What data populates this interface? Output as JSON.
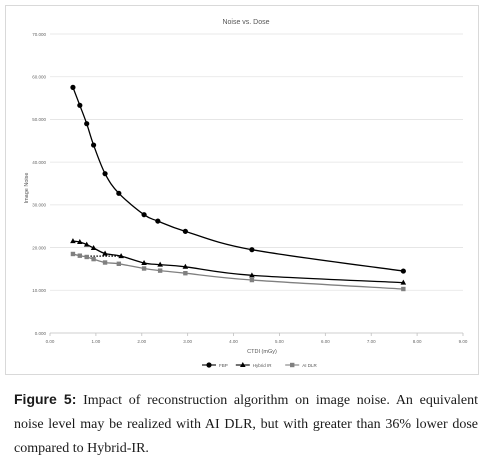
{
  "chart_data": {
    "type": "line",
    "title": "Noise vs. Dose",
    "xlabel": "CTDI (mGy)",
    "ylabel": "Image Noise",
    "xlim": [
      0,
      9
    ],
    "ylim": [
      0,
      70
    ],
    "x_ticks": [
      0,
      1,
      2,
      3,
      4,
      5,
      6,
      7,
      8,
      9
    ],
    "x_tick_labels": [
      "0.00",
      "1.00",
      "2.00",
      "3.00",
      "4.00",
      "5.00",
      "6.00",
      "7.00",
      "8.00",
      "9.00"
    ],
    "y_ticks": [
      0,
      10,
      20,
      30,
      40,
      50,
      60,
      70
    ],
    "y_tick_labels": [
      "0.000",
      "10.000",
      "20.000",
      "30.000",
      "40.000",
      "50.000",
      "60.000",
      "70.000"
    ],
    "grid": "horizontal",
    "legend_position": "bottom",
    "series": [
      {
        "name": "FBP",
        "color": "#000000",
        "marker": "circle",
        "points": [
          [
            0.5,
            57.5
          ],
          [
            0.65,
            53.3
          ],
          [
            0.8,
            49.0
          ],
          [
            0.95,
            44.0
          ],
          [
            1.2,
            37.3
          ],
          [
            1.5,
            32.7
          ],
          [
            2.05,
            27.7
          ],
          [
            2.35,
            26.2
          ],
          [
            2.95,
            23.8
          ],
          [
            4.4,
            19.5
          ],
          [
            7.7,
            14.5
          ]
        ]
      },
      {
        "name": "Hybrid IR",
        "color": "#000000",
        "marker": "triangle",
        "points": [
          [
            0.5,
            21.5
          ],
          [
            0.65,
            21.3
          ],
          [
            0.8,
            20.7
          ],
          [
            0.95,
            19.9
          ],
          [
            1.2,
            18.6
          ],
          [
            1.55,
            18.0
          ],
          [
            2.05,
            16.4
          ],
          [
            2.4,
            16.0
          ],
          [
            2.95,
            15.5
          ],
          [
            4.4,
            13.5
          ],
          [
            7.7,
            11.8
          ]
        ]
      },
      {
        "name": "AI DLR",
        "color": "#808080",
        "marker": "square",
        "points": [
          [
            0.5,
            18.5
          ],
          [
            0.65,
            18.1
          ],
          [
            0.8,
            17.8
          ],
          [
            0.95,
            17.3
          ],
          [
            1.2,
            16.5
          ],
          [
            1.5,
            16.2
          ],
          [
            2.05,
            15.1
          ],
          [
            2.4,
            14.6
          ],
          [
            2.95,
            14.0
          ],
          [
            4.4,
            12.4
          ],
          [
            7.7,
            10.3
          ]
        ]
      }
    ],
    "reference_line": {
      "style": "dotted",
      "color": "#000000",
      "x": [
        0.75,
        1.55
      ],
      "y": 18.0
    }
  },
  "caption": {
    "label": "Figure 5:",
    "text": " Impact of reconstruction algorithm on image noise. An equivalent noise level may be realized with AI DLR, but with greater than 36% lower dose compared to Hybrid-IR."
  }
}
